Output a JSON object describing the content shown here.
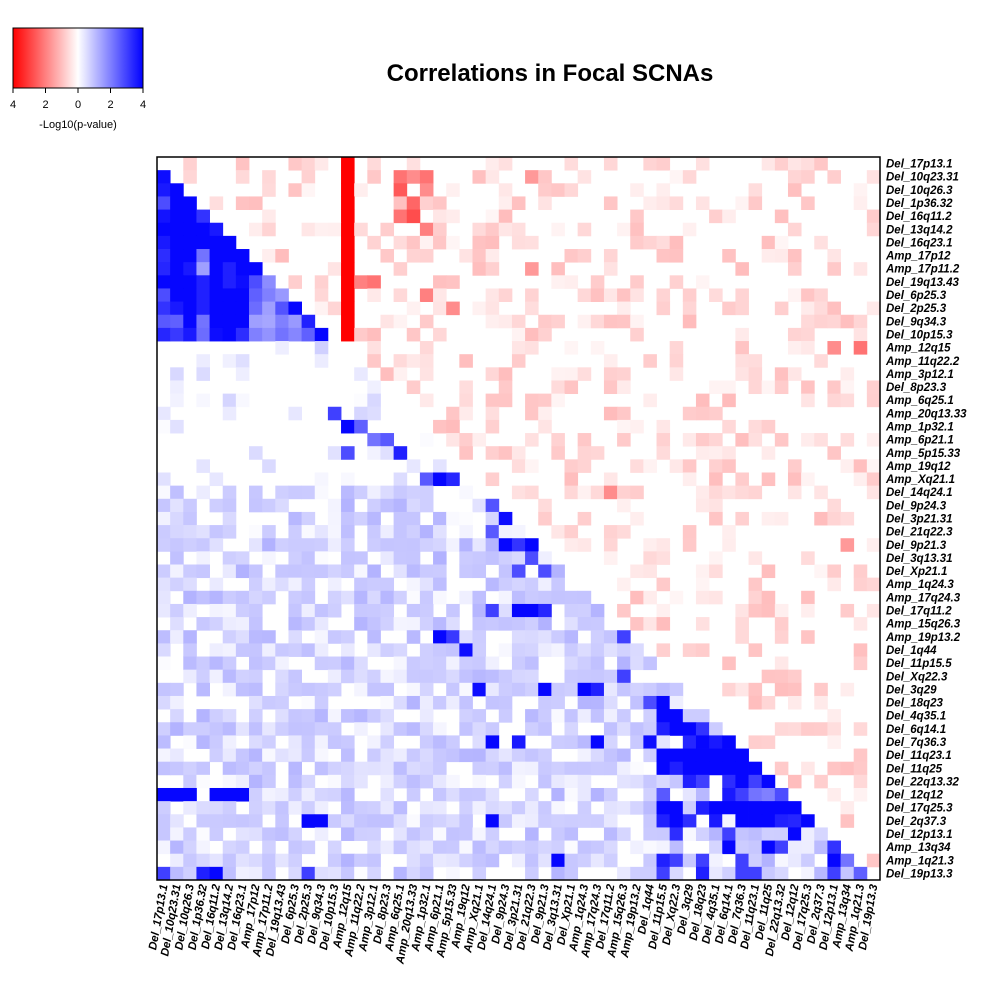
{
  "chart_data": {
    "type": "heatmap",
    "title": "Correlations in Focal SCNAs",
    "labels": [
      "Del_17p13.1",
      "Del_10q23.31",
      "Del_10q26.3",
      "Del_1p36.32",
      "Del_16q11.2",
      "Del_13q14.2",
      "Del_16q23.1",
      "Amp_17p12",
      "Amp_17p11.2",
      "Del_19q13.43",
      "Del_6p25.3",
      "Del_2p25.3",
      "Del_9q34.3",
      "Del_10p15.3",
      "Amp_12q15",
      "Amp_11q22.2",
      "Amp_3p12.1",
      "Del_8p23.3",
      "Amp_6q25.1",
      "Amp_20q13.33",
      "Amp_1p32.1",
      "Amp_6p21.1",
      "Amp_5p15.33",
      "Amp_19q12",
      "Amp_Xq21.1",
      "Del_14q24.1",
      "Del_9p24.3",
      "Del_3p21.31",
      "Del_21q22.3",
      "Del_9p21.3",
      "Del_3q13.31",
      "Del_Xp21.1",
      "Amp_1q24.3",
      "Amp_17q24.3",
      "Del_17q11.2",
      "Amp_15q26.3",
      "Amp_19p13.2",
      "Del_1q44",
      "Del_11p15.5",
      "Del_Xq22.3",
      "Del_3q29",
      "Del_18q23",
      "Del_4q35.1",
      "Del_6q14.1",
      "Del_7q36.3",
      "Del_11q23.1",
      "Del_11q25",
      "Del_22q13.32",
      "Del_12q12",
      "Del_17q25.3",
      "Del_2q37.3",
      "Del_12p13.1",
      "Amp_13q34",
      "Amp_1q21.3",
      "Del_19p13.3"
    ],
    "colorbar": {
      "label": "-Log10(p-value)",
      "ticks": [
        "4",
        "2",
        "0",
        "2",
        "4"
      ],
      "range": [
        -4,
        4
      ],
      "colors": {
        "negative": "#ff0000",
        "zero": "#ffffff",
        "positive": "#0000ff"
      }
    },
    "strong_pairs_lower": [
      [
        1,
        0,
        3.8
      ],
      [
        2,
        0,
        3.6
      ],
      [
        2,
        1,
        3.9
      ],
      [
        3,
        0,
        2.8
      ],
      [
        3,
        1,
        3.9
      ],
      [
        3,
        2,
        3.9
      ],
      [
        4,
        0,
        3.7
      ],
      [
        4,
        1,
        3.9
      ],
      [
        4,
        2,
        3.9
      ],
      [
        4,
        3,
        3.2
      ],
      [
        5,
        0,
        3.9
      ],
      [
        5,
        1,
        3.9
      ],
      [
        5,
        2,
        3.9
      ],
      [
        5,
        3,
        3.9
      ],
      [
        5,
        4,
        3.6
      ],
      [
        6,
        0,
        3.6
      ],
      [
        6,
        1,
        3.9
      ],
      [
        6,
        2,
        3.9
      ],
      [
        6,
        3,
        3.9
      ],
      [
        6,
        4,
        3.9
      ],
      [
        6,
        5,
        3.9
      ],
      [
        7,
        0,
        3.3
      ],
      [
        7,
        1,
        3.9
      ],
      [
        7,
        2,
        3.9
      ],
      [
        7,
        3,
        2.2
      ],
      [
        7,
        4,
        3.9
      ],
      [
        7,
        5,
        3.9
      ],
      [
        7,
        6,
        3.9
      ],
      [
        8,
        0,
        3.4
      ],
      [
        8,
        1,
        3.9
      ],
      [
        8,
        2,
        3.6
      ],
      [
        8,
        3,
        1.5
      ],
      [
        8,
        4,
        3.9
      ],
      [
        8,
        5,
        3.5
      ],
      [
        8,
        6,
        3.9
      ],
      [
        8,
        7,
        3.9
      ],
      [
        9,
        0,
        3.9
      ],
      [
        9,
        1,
        3.9
      ],
      [
        9,
        2,
        3.9
      ],
      [
        9,
        3,
        3.5
      ],
      [
        9,
        4,
        3.9
      ],
      [
        9,
        5,
        3.5
      ],
      [
        9,
        6,
        3.8
      ],
      [
        9,
        7,
        2.8
      ],
      [
        9,
        8,
        1.8
      ],
      [
        10,
        0,
        2.8
      ],
      [
        10,
        1,
        3.9
      ],
      [
        10,
        2,
        3.9
      ],
      [
        10,
        3,
        3.5
      ],
      [
        10,
        4,
        3.9
      ],
      [
        10,
        5,
        3.9
      ],
      [
        10,
        6,
        3.9
      ],
      [
        10,
        7,
        2.5
      ],
      [
        10,
        8,
        2.0
      ],
      [
        10,
        9,
        1.6
      ],
      [
        11,
        0,
        3.2
      ],
      [
        11,
        1,
        3.6
      ],
      [
        11,
        2,
        3.9
      ],
      [
        11,
        3,
        3.5
      ],
      [
        11,
        4,
        3.9
      ],
      [
        11,
        5,
        3.9
      ],
      [
        11,
        6,
        3.9
      ],
      [
        11,
        7,
        2.3
      ],
      [
        11,
        8,
        1.5
      ],
      [
        11,
        9,
        2.7
      ],
      [
        11,
        10,
        3.9
      ],
      [
        12,
        0,
        2.6
      ],
      [
        12,
        1,
        2.5
      ],
      [
        12,
        2,
        3.9
      ],
      [
        12,
        3,
        2.2
      ],
      [
        12,
        4,
        3.9
      ],
      [
        12,
        5,
        3.9
      ],
      [
        12,
        6,
        3.9
      ],
      [
        12,
        7,
        1.5
      ],
      [
        12,
        8,
        1.4
      ],
      [
        12,
        9,
        2.0
      ],
      [
        12,
        10,
        1.6
      ],
      [
        12,
        11,
        3.5
      ],
      [
        13,
        0,
        3.4
      ],
      [
        13,
        1,
        3.1
      ],
      [
        13,
        2,
        3.6
      ],
      [
        13,
        3,
        2.3
      ],
      [
        13,
        4,
        3.8
      ],
      [
        13,
        5,
        3.9
      ],
      [
        13,
        6,
        3.3
      ],
      [
        13,
        7,
        2.0
      ],
      [
        13,
        8,
        1.7
      ],
      [
        13,
        9,
        2.2
      ],
      [
        13,
        10,
        1.9
      ],
      [
        13,
        11,
        2.5
      ],
      [
        13,
        12,
        3.9
      ],
      [
        19,
        13,
        3.0
      ],
      [
        20,
        14,
        3.9
      ],
      [
        20,
        15,
        2.5
      ],
      [
        21,
        16,
        2.2
      ],
      [
        21,
        17,
        2.6
      ],
      [
        22,
        18,
        3.5
      ],
      [
        22,
        14,
        2.8
      ],
      [
        24,
        21,
        3.9
      ],
      [
        24,
        22,
        3.4
      ],
      [
        24,
        20,
        2.6
      ],
      [
        26,
        25,
        2.7
      ],
      [
        27,
        26,
        3.8
      ],
      [
        28,
        25,
        2.6
      ],
      [
        29,
        26,
        3.9
      ],
      [
        29,
        27,
        3.2
      ],
      [
        29,
        28,
        3.9
      ],
      [
        30,
        28,
        2.8
      ],
      [
        31,
        27,
        2.8
      ],
      [
        31,
        29,
        2.8
      ],
      [
        34,
        25,
        3.0
      ],
      [
        34,
        27,
        3.9
      ],
      [
        34,
        28,
        3.9
      ],
      [
        34,
        29,
        3.4
      ],
      [
        36,
        21,
        3.9
      ],
      [
        36,
        22,
        3.1
      ],
      [
        37,
        23,
        3.8
      ],
      [
        36,
        35,
        3.0
      ],
      [
        39,
        35,
        3.0
      ],
      [
        39,
        40,
        0.0
      ],
      [
        40,
        33,
        3.5
      ],
      [
        40,
        24,
        3.8
      ],
      [
        40,
        29,
        3.9
      ],
      [
        40,
        32,
        3.9
      ],
      [
        41,
        37,
        2.8
      ],
      [
        41,
        38,
        3.9
      ],
      [
        42,
        38,
        3.9
      ],
      [
        42,
        39,
        3.9
      ],
      [
        43,
        38,
        3.5
      ],
      [
        43,
        39,
        3.9
      ],
      [
        43,
        40,
        3.9
      ],
      [
        43,
        41,
        3.2
      ],
      [
        44,
        25,
        3.9
      ],
      [
        44,
        27,
        3.6
      ],
      [
        44,
        33,
        3.9
      ],
      [
        44,
        37,
        3.8
      ],
      [
        44,
        40,
        3.4
      ],
      [
        44,
        41,
        3.9
      ],
      [
        44,
        42,
        3.6
      ],
      [
        44,
        43,
        3.9
      ],
      [
        45,
        38,
        3.9
      ],
      [
        45,
        39,
        3.9
      ],
      [
        45,
        40,
        3.9
      ],
      [
        45,
        41,
        3.9
      ],
      [
        45,
        42,
        3.9
      ],
      [
        45,
        43,
        3.9
      ],
      [
        45,
        44,
        3.9
      ],
      [
        46,
        38,
        3.9
      ],
      [
        46,
        39,
        3.5
      ],
      [
        46,
        40,
        3.9
      ],
      [
        46,
        41,
        3.9
      ],
      [
        46,
        42,
        3.9
      ],
      [
        46,
        43,
        3.9
      ],
      [
        46,
        44,
        3.9
      ],
      [
        46,
        45,
        3.9
      ],
      [
        47,
        40,
        3.5
      ],
      [
        47,
        41,
        3.0
      ],
      [
        47,
        43,
        3.3
      ],
      [
        47,
        44,
        3.9
      ],
      [
        47,
        45,
        3.0
      ],
      [
        47,
        46,
        3.9
      ],
      [
        48,
        0,
        3.9
      ],
      [
        48,
        1,
        3.9
      ],
      [
        48,
        2,
        3.9
      ],
      [
        48,
        4,
        3.9
      ],
      [
        48,
        5,
        3.9
      ],
      [
        48,
        6,
        3.9
      ],
      [
        48,
        38,
        2.6
      ],
      [
        48,
        43,
        3.6
      ],
      [
        48,
        44,
        3.0
      ],
      [
        48,
        45,
        2.2
      ],
      [
        48,
        46,
        2.0
      ],
      [
        48,
        47,
        2.8
      ],
      [
        49,
        38,
        3.9
      ],
      [
        49,
        39,
        3.9
      ],
      [
        49,
        41,
        3.5
      ],
      [
        49,
        42,
        3.9
      ],
      [
        49,
        43,
        3.9
      ],
      [
        49,
        44,
        3.9
      ],
      [
        49,
        45,
        3.9
      ],
      [
        49,
        46,
        3.9
      ],
      [
        49,
        47,
        3.9
      ],
      [
        49,
        48,
        3.9
      ],
      [
        50,
        11,
        3.9
      ],
      [
        50,
        12,
        3.9
      ],
      [
        50,
        25,
        3.9
      ],
      [
        50,
        38,
        3.5
      ],
      [
        50,
        39,
        3.9
      ],
      [
        50,
        40,
        3.3
      ],
      [
        50,
        42,
        3.6
      ],
      [
        50,
        44,
        3.9
      ],
      [
        50,
        45,
        3.9
      ],
      [
        50,
        46,
        3.9
      ],
      [
        50,
        47,
        3.5
      ],
      [
        50,
        48,
        3.4
      ],
      [
        50,
        49,
        3.9
      ],
      [
        51,
        48,
        3.9
      ],
      [
        51,
        43,
        3.0
      ],
      [
        51,
        39,
        3.3
      ],
      [
        52,
        43,
        3.9
      ],
      [
        52,
        46,
        3.9
      ],
      [
        52,
        47,
        3.0
      ],
      [
        52,
        51,
        3.2
      ],
      [
        53,
        30,
        3.9
      ],
      [
        53,
        38,
        3.5
      ],
      [
        53,
        39,
        3.0
      ],
      [
        53,
        41,
        3.0
      ],
      [
        53,
        44,
        3.0
      ],
      [
        53,
        51,
        3.9
      ],
      [
        53,
        52,
        2.2
      ],
      [
        54,
        0,
        3.0
      ],
      [
        54,
        3,
        3.5
      ],
      [
        54,
        4,
        3.9
      ],
      [
        54,
        11,
        3.0
      ],
      [
        54,
        38,
        3.0
      ],
      [
        54,
        41,
        3.5
      ],
      [
        54,
        44,
        3.0
      ],
      [
        54,
        45,
        3.0
      ],
      [
        54,
        51,
        3.0
      ],
      [
        54,
        53,
        2.5
      ]
    ],
    "strong_pairs_upper": [
      [
        0,
        14,
        -4.0
      ],
      [
        1,
        14,
        -4.0
      ],
      [
        2,
        14,
        -4.0
      ],
      [
        3,
        14,
        -4.0
      ],
      [
        4,
        14,
        -4.0
      ],
      [
        5,
        14,
        -4.0
      ],
      [
        6,
        14,
        -4.0
      ],
      [
        7,
        14,
        -4.0
      ],
      [
        8,
        14,
        -4.0
      ],
      [
        9,
        14,
        -4.0
      ],
      [
        10,
        14,
        -4.0
      ],
      [
        11,
        14,
        -4.0
      ],
      [
        12,
        14,
        -4.0
      ],
      [
        13,
        14,
        -4.0
      ],
      [
        1,
        18,
        -2.2
      ],
      [
        2,
        18,
        -2.6
      ],
      [
        1,
        19,
        -1.8
      ],
      [
        3,
        19,
        -2.4
      ],
      [
        4,
        18,
        -2.2
      ],
      [
        4,
        19,
        -2.8
      ],
      [
        1,
        20,
        -2.2
      ],
      [
        2,
        20,
        -1.8
      ],
      [
        5,
        20,
        -2.0
      ],
      [
        9,
        15,
        -2.0
      ],
      [
        9,
        16,
        -2.2
      ],
      [
        10,
        20,
        -2.0
      ],
      [
        11,
        22,
        -1.8
      ],
      [
        1,
        28,
        -1.6
      ],
      [
        8,
        28,
        -1.6
      ],
      [
        14,
        51,
        -1.8
      ],
      [
        14,
        53,
        -2.2
      ],
      [
        25,
        34,
        -1.8
      ],
      [
        29,
        52,
        -1.6
      ]
    ]
  }
}
